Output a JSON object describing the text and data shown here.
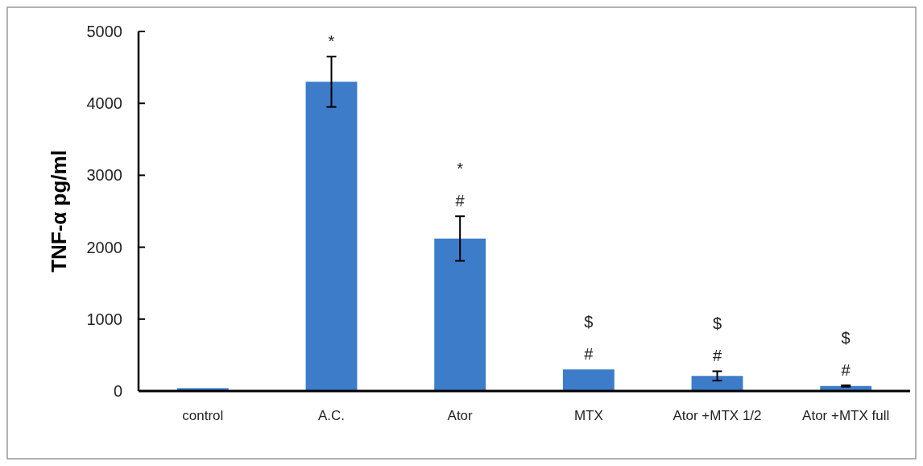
{
  "chart_data": {
    "type": "bar",
    "ylabel": "TNF-α pg/ml",
    "categories": [
      "control",
      "A.C.",
      "Ator",
      "MTX",
      "Ator +MTX 1/2",
      "Ator +MTX full"
    ],
    "values": [
      40,
      4300,
      2120,
      300,
      210,
      70
    ],
    "errors": [
      null,
      350,
      310,
      null,
      65,
      10
    ],
    "color": "#3d7cc9",
    "ylim": [
      0,
      5000
    ],
    "yticks": [
      0,
      1000,
      2000,
      3000,
      4000,
      5000
    ],
    "value_labels": [
      null,
      "*",
      "*\n#",
      "$\n#",
      "$\n#",
      "$\n#"
    ]
  }
}
